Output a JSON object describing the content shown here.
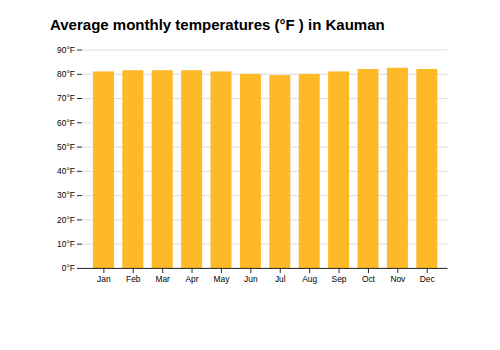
{
  "chart_data": {
    "type": "bar",
    "title": "Average monthly temperatures (°F ) in Kauman",
    "categories": [
      "Jan",
      "Feb",
      "Mar",
      "Apr",
      "May",
      "Jun",
      "Jul",
      "Aug",
      "Sep",
      "Oct",
      "Nov",
      "Dec"
    ],
    "values": [
      81.0,
      81.5,
      81.5,
      81.5,
      81.0,
      80.0,
      79.5,
      80.0,
      81.0,
      82.0,
      82.5,
      82.0
    ],
    "color": "#FDB927",
    "ylim": [
      0,
      90
    ],
    "yticks": [
      {
        "value": 0,
        "label": "0°F"
      },
      {
        "value": 10,
        "label": "10°F"
      },
      {
        "value": 20,
        "label": "20°F"
      },
      {
        "value": 30,
        "label": "30°F"
      },
      {
        "value": 40,
        "label": "40°F"
      },
      {
        "value": 50,
        "label": "50°F"
      },
      {
        "value": 60,
        "label": "60°F"
      },
      {
        "value": 70,
        "label": "70°F"
      },
      {
        "value": 80,
        "label": "80°F"
      },
      {
        "value": 90,
        "label": "90°F"
      }
    ],
    "grid": true
  }
}
